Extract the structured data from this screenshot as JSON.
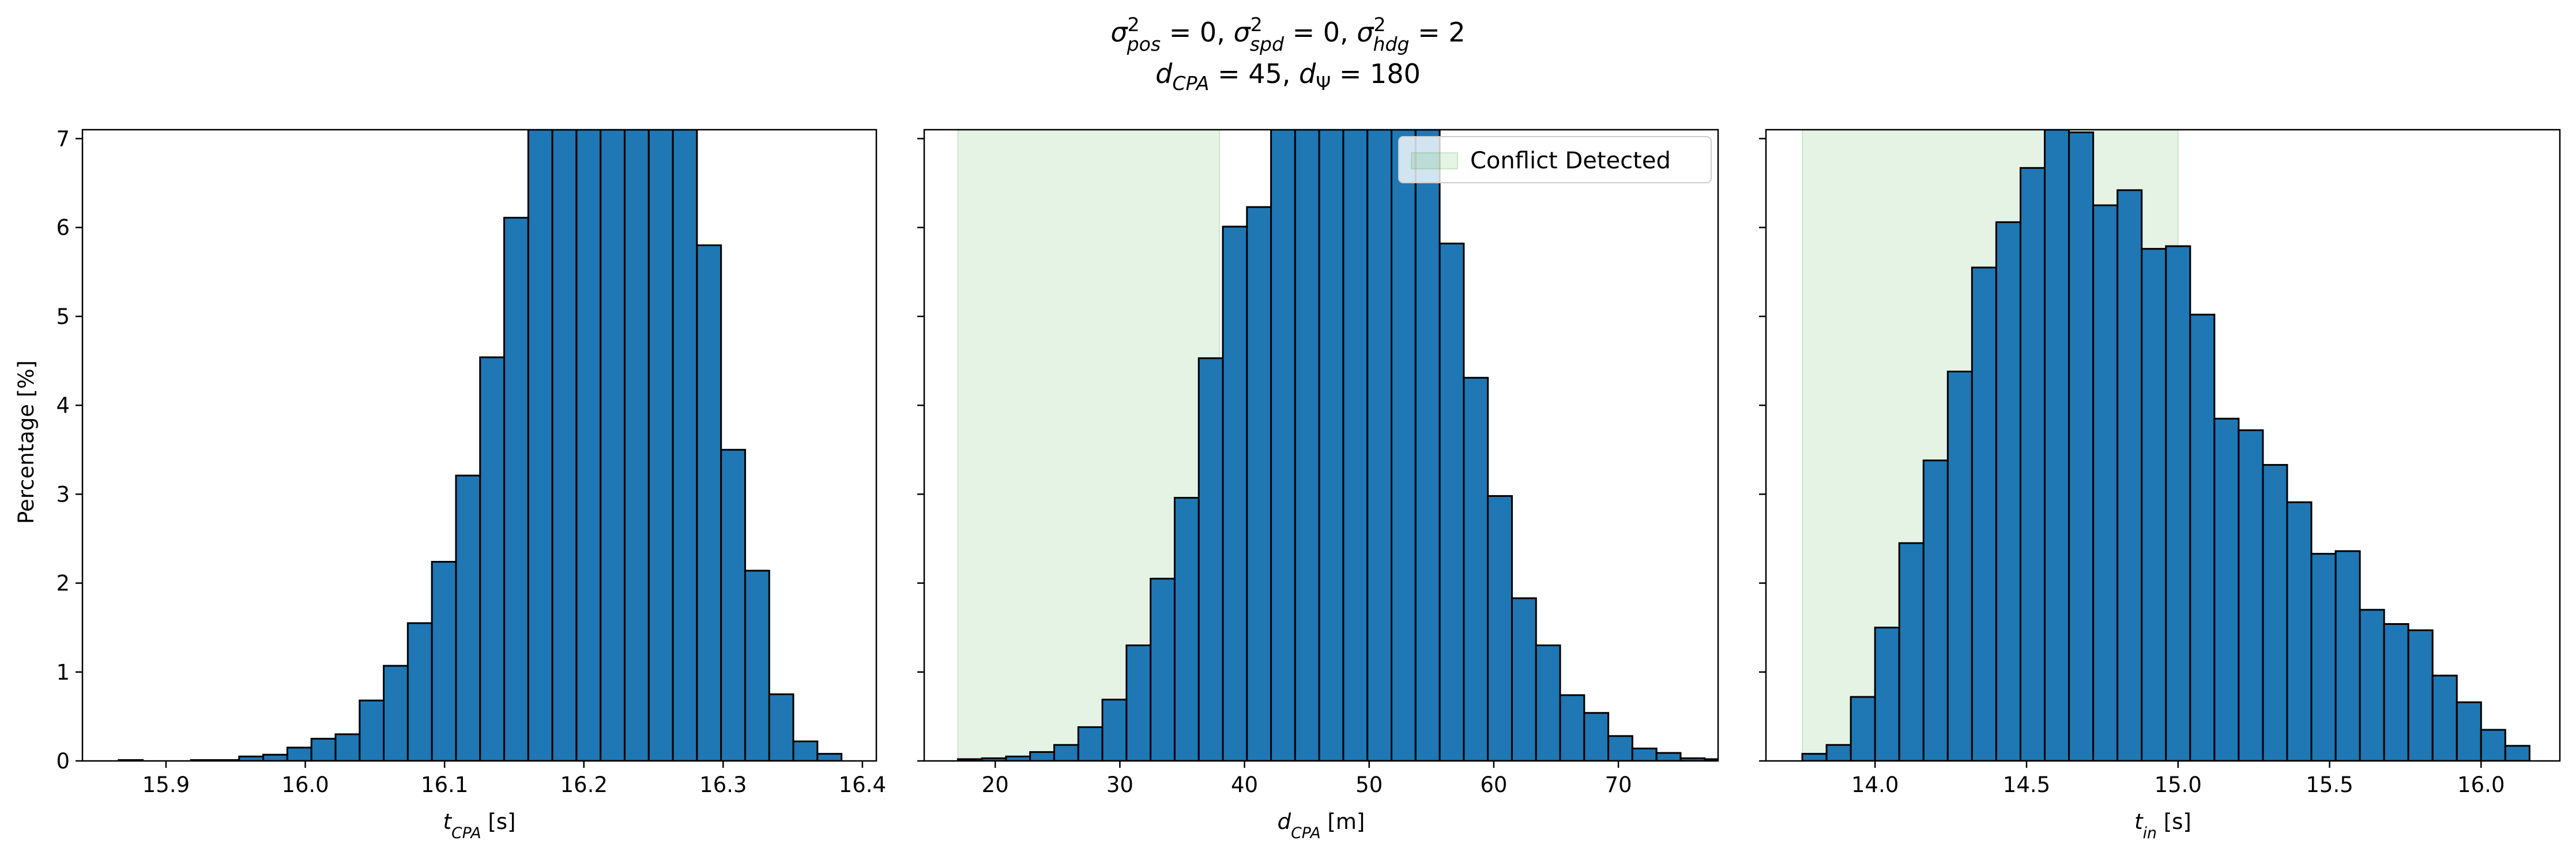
{
  "figure": {
    "title_line1": "σ²pos = 0, σ²spd = 0, σ²hdg = 2",
    "title_line2": "dCPA = 45, dΨ = 180",
    "ylabel": "Percentage [%]"
  },
  "colors": {
    "bar": "#1f77b4",
    "edge": "#000000",
    "shade": "#2ca02c"
  },
  "chart_data": [
    {
      "type": "bar",
      "xlabel": "tCPA [s]",
      "xlim": [
        15.84,
        16.41
      ],
      "ylim": [
        0,
        7.1
      ],
      "xticks": [
        "15.9",
        "16.0",
        "16.1",
        "16.2",
        "16.3",
        "16.4"
      ],
      "yticks": [
        "0",
        "1",
        "2",
        "3",
        "4",
        "5",
        "6",
        "7"
      ],
      "bin_start": 15.866,
      "bin_width": 0.0173,
      "values": [
        0.01,
        0.0,
        0.0,
        0.01,
        0.01,
        0.05,
        0.07,
        0.15,
        0.25,
        0.3,
        0.68,
        1.07,
        1.55,
        2.24,
        3.21,
        4.54,
        6.11,
        7.1,
        7.1,
        7.1,
        7.1,
        7.1,
        7.1,
        7.1,
        5.8,
        3.5,
        2.14,
        0.75,
        0.22,
        0.08
      ]
    },
    {
      "type": "bar",
      "xlabel": "dCPA [m]",
      "xlim": [
        14.3,
        78.0
      ],
      "ylim": [
        0,
        7.1
      ],
      "xticks": [
        "20",
        "30",
        "40",
        "50",
        "60",
        "70"
      ],
      "shade_range": [
        17.0,
        38.0
      ],
      "legend": {
        "label": "Conflict Detected",
        "loc": "upper right"
      },
      "bin_start": 17.0,
      "bin_width": 1.933,
      "values": [
        0.02,
        0.03,
        0.05,
        0.1,
        0.18,
        0.38,
        0.69,
        1.3,
        2.05,
        2.96,
        4.53,
        6.01,
        6.23,
        7.1,
        7.1,
        7.1,
        7.1,
        7.1,
        7.1,
        7.1,
        5.82,
        4.31,
        2.98,
        1.83,
        1.3,
        0.74,
        0.54,
        0.28,
        0.14,
        0.09,
        0.03,
        0.02
      ]
    },
    {
      "type": "bar",
      "xlabel": "tin [s]",
      "xlim": [
        13.64,
        16.26
      ],
      "ylim": [
        0,
        7.1
      ],
      "xticks": [
        "14.0",
        "14.5",
        "15.0",
        "15.5",
        "16.0"
      ],
      "shade_range": [
        13.76,
        15.0
      ],
      "bin_start": 13.76,
      "bin_width": 0.08,
      "values": [
        0.08,
        0.18,
        0.72,
        1.5,
        2.45,
        3.38,
        4.38,
        5.55,
        6.06,
        6.67,
        7.1,
        7.07,
        6.25,
        6.42,
        5.76,
        5.79,
        5.02,
        3.85,
        3.72,
        3.33,
        2.91,
        2.33,
        2.36,
        1.7,
        1.54,
        1.47,
        0.96,
        0.66,
        0.35,
        0.17
      ]
    }
  ]
}
